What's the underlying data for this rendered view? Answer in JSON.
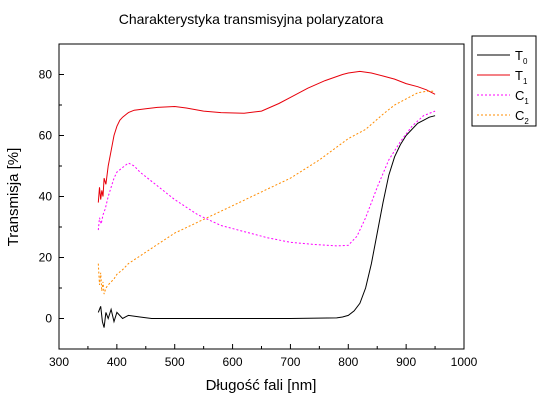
{
  "chart_data": {
    "type": "line",
    "title": "Charakterystyka transmisyjna polaryzatora",
    "xlabel": "Długość fali [nm]",
    "ylabel": "Transmisja [%]",
    "xlim": [
      300,
      1000
    ],
    "ylim": [
      -10,
      90
    ],
    "xticks": [
      300,
      400,
      500,
      600,
      700,
      800,
      900,
      1000
    ],
    "yticks": [
      0,
      20,
      40,
      60,
      80
    ],
    "grid": false,
    "legend_position": "outside-top-right",
    "series": [
      {
        "name": "T0",
        "base": "T",
        "sub": "0",
        "color": "#000000",
        "dash": "solid",
        "x": [
          368,
          372,
          375,
          378,
          381,
          385,
          390,
          395,
          400,
          410,
          420,
          440,
          460,
          500,
          600,
          700,
          780,
          790,
          800,
          810,
          820,
          830,
          840,
          850,
          860,
          870,
          880,
          890,
          900,
          910,
          920,
          930,
          940,
          950
        ],
        "y": [
          2,
          4,
          -1,
          -3,
          2,
          0,
          3,
          -1,
          2,
          0,
          1,
          0.5,
          0,
          0,
          0,
          0,
          0.2,
          0.5,
          1,
          2.5,
          5,
          10,
          18,
          28,
          38,
          47,
          53,
          57,
          60,
          62,
          64,
          65,
          66,
          66.5
        ]
      },
      {
        "name": "T1",
        "base": "T",
        "sub": "1",
        "color": "#e8000b",
        "dash": "solid",
        "x": [
          368,
          370,
          372,
          374,
          376,
          378,
          381,
          385,
          390,
          395,
          400,
          405,
          410,
          420,
          430,
          450,
          470,
          500,
          520,
          550,
          580,
          620,
          650,
          680,
          700,
          730,
          760,
          790,
          800,
          820,
          840,
          860,
          880,
          900,
          920,
          935,
          950
        ],
        "y": [
          38,
          43,
          39,
          42,
          40,
          46,
          44,
          50,
          55,
          60,
          63,
          65,
          66,
          67.5,
          68.3,
          68.8,
          69.2,
          69.5,
          69,
          68,
          67.5,
          67.3,
          68,
          70.5,
          72.5,
          75.5,
          78,
          80,
          80.5,
          81,
          80.5,
          79.5,
          78.5,
          77,
          76,
          75,
          73.5
        ]
      },
      {
        "name": "C1",
        "base": "C",
        "sub": "1",
        "color": "#ff00ff",
        "dash": "dotted",
        "x": [
          368,
          370,
          373,
          376,
          380,
          385,
          390,
          395,
          400,
          410,
          420,
          430,
          440,
          460,
          480,
          500,
          540,
          580,
          620,
          660,
          700,
          740,
          780,
          800,
          815,
          830,
          850,
          870,
          890,
          910,
          930,
          950
        ],
        "y": [
          29,
          33,
          31,
          34,
          36,
          40,
          43,
          46,
          48,
          49.5,
          51,
          50,
          48,
          45,
          42,
          39,
          34,
          30.5,
          28.5,
          26.5,
          25,
          24.3,
          23.8,
          24,
          27,
          33,
          43,
          52,
          58,
          63,
          66.5,
          68
        ]
      },
      {
        "name": "C2",
        "base": "C",
        "sub": "2",
        "color": "#ff8c00",
        "dash": "dotted",
        "x": [
          368,
          370,
          372,
          374,
          376,
          378,
          381,
          385,
          390,
          395,
          400,
          410,
          420,
          440,
          460,
          500,
          550,
          600,
          650,
          700,
          750,
          800,
          830,
          860,
          880,
          900,
          920,
          935,
          950
        ],
        "y": [
          18,
          11,
          15,
          9,
          12,
          8,
          10,
          11,
          12,
          13,
          14.5,
          16,
          18,
          20.5,
          23,
          28,
          32.5,
          37,
          41.5,
          46,
          52,
          59,
          62,
          67,
          70,
          72,
          74,
          74.5,
          74.5
        ]
      }
    ]
  }
}
